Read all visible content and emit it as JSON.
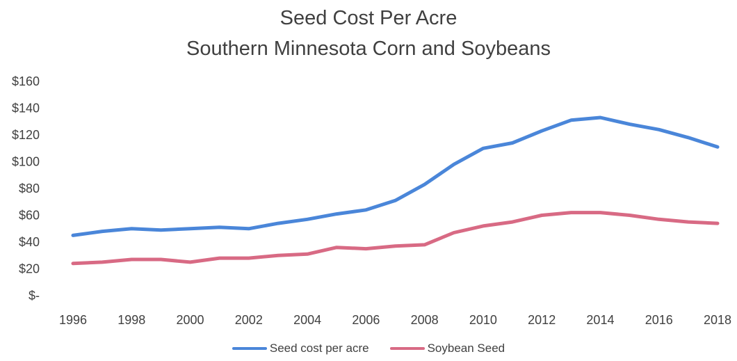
{
  "chart_data": {
    "type": "line",
    "title": "Seed Cost Per Acre",
    "subtitle": "Southern Minnesota Corn and Soybeans",
    "xlabel": "",
    "ylabel": "",
    "x": [
      1996,
      1997,
      1998,
      1999,
      2000,
      2001,
      2002,
      2003,
      2004,
      2005,
      2006,
      2007,
      2008,
      2009,
      2010,
      2011,
      2012,
      2013,
      2014,
      2015,
      2016,
      2017,
      2018
    ],
    "x_tick_labels": [
      "1996",
      "1998",
      "2000",
      "2002",
      "2004",
      "2006",
      "2008",
      "2010",
      "2012",
      "2014",
      "2016",
      "2018"
    ],
    "y_tick_labels": [
      "$-",
      "$20",
      "$40",
      "$60",
      "$80",
      "$100",
      "$120",
      "$140",
      "$160"
    ],
    "ylim": [
      0,
      160
    ],
    "grid": false,
    "legend_position": "bottom",
    "series": [
      {
        "name": "Seed cost per acre",
        "color": "#4a86d9",
        "values": [
          45,
          48,
          50,
          49,
          50,
          51,
          50,
          54,
          57,
          61,
          64,
          71,
          83,
          98,
          110,
          114,
          123,
          131,
          133,
          128,
          124,
          118,
          111
        ]
      },
      {
        "name": "Soybean Seed",
        "color": "#d86a84",
        "values": [
          24,
          25,
          27,
          27,
          25,
          28,
          28,
          30,
          31,
          36,
          35,
          37,
          38,
          47,
          52,
          55,
          60,
          62,
          62,
          60,
          57,
          55,
          54
        ]
      }
    ]
  }
}
